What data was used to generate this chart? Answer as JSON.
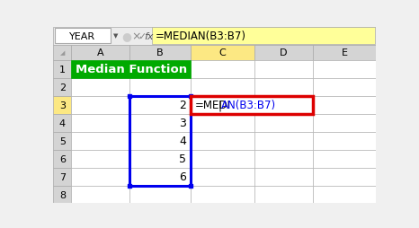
{
  "title": "Median Function",
  "formula_bar_text": "=MEDIAN(B3:B7)",
  "name_box": "YEAR",
  "b_values": [
    "2",
    "3",
    "4",
    "5",
    "6"
  ],
  "green_bg": "#00aa00",
  "yellow_col_hdr": "#fce883",
  "yellow_row_hdr": "#fce883",
  "formula_bar_bg": "#ffff99",
  "blue_border": "#0000ee",
  "red_border": "#dd0000",
  "header_bg": "#d4d4d4",
  "cell_bg": "#ffffff",
  "grid_color": "#aaaaaa",
  "row3_row_hdr_bg": "#fce883",
  "prefix_black": "=MEDI",
  "cursor": "|",
  "suffix_blue": "AN(B3:B7)"
}
